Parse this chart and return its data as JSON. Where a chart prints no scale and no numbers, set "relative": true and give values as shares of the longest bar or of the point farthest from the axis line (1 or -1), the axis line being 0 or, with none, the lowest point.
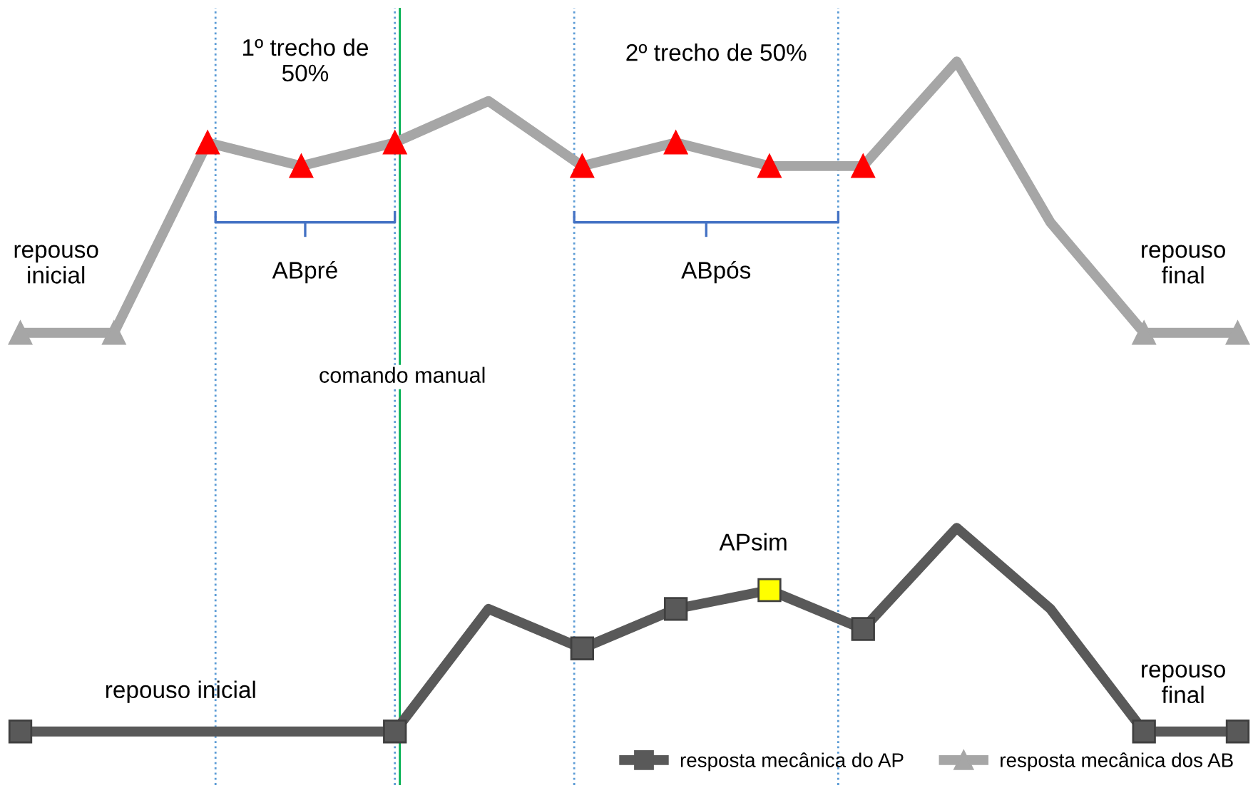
{
  "chart_data": {
    "type": "line",
    "relative": true,
    "legend": "bottom right",
    "categories": [
      null,
      null,
      null,
      null,
      null,
      null,
      null,
      null,
      null,
      null,
      null,
      null,
      null,
      null
    ],
    "series": [
      {
        "name": "resposta mecânica do AP",
        "color": "#595959",
        "marker": "square",
        "values": [
          0,
          0,
          0,
          0,
          0,
          0.183,
          0.124,
          0.183,
          0.211,
          0.153,
          0.304,
          0.183,
          0,
          0
        ],
        "colors": [
          "#595959",
          null,
          null,
          null,
          "#595959",
          null,
          "#595959",
          "#595959",
          "#ffff00",
          "#595959",
          null,
          null,
          "#595959",
          "#595959"
        ]
      },
      {
        "name": "resposta mecânica dos AB",
        "color": "#a6a6a6",
        "marker": "triangle",
        "values": [
          0.595,
          0.595,
          0.879,
          0.844,
          0.879,
          0.941,
          0.844,
          0.879,
          0.844,
          0.844,
          1,
          0.76,
          0.595,
          0.595
        ],
        "colors": [
          "#a6a6a6",
          "#a6a6a6",
          "#ff0000",
          "#ff0000",
          "#ff0000",
          null,
          "#ff0000",
          "#ff0000",
          "#ff0000",
          "#ff0000",
          null,
          null,
          "#a6a6a6",
          "#a6a6a6"
        ]
      }
    ],
    "annotations": [
      "1º trecho de\n50%",
      "2º trecho de 50%",
      "ABpré",
      "ABpós",
      "repouso\ninicial",
      "repouso\nfinal",
      "APsim",
      "repouso inicial",
      "repouso\nfinal",
      "comando manual"
    ]
  }
}
